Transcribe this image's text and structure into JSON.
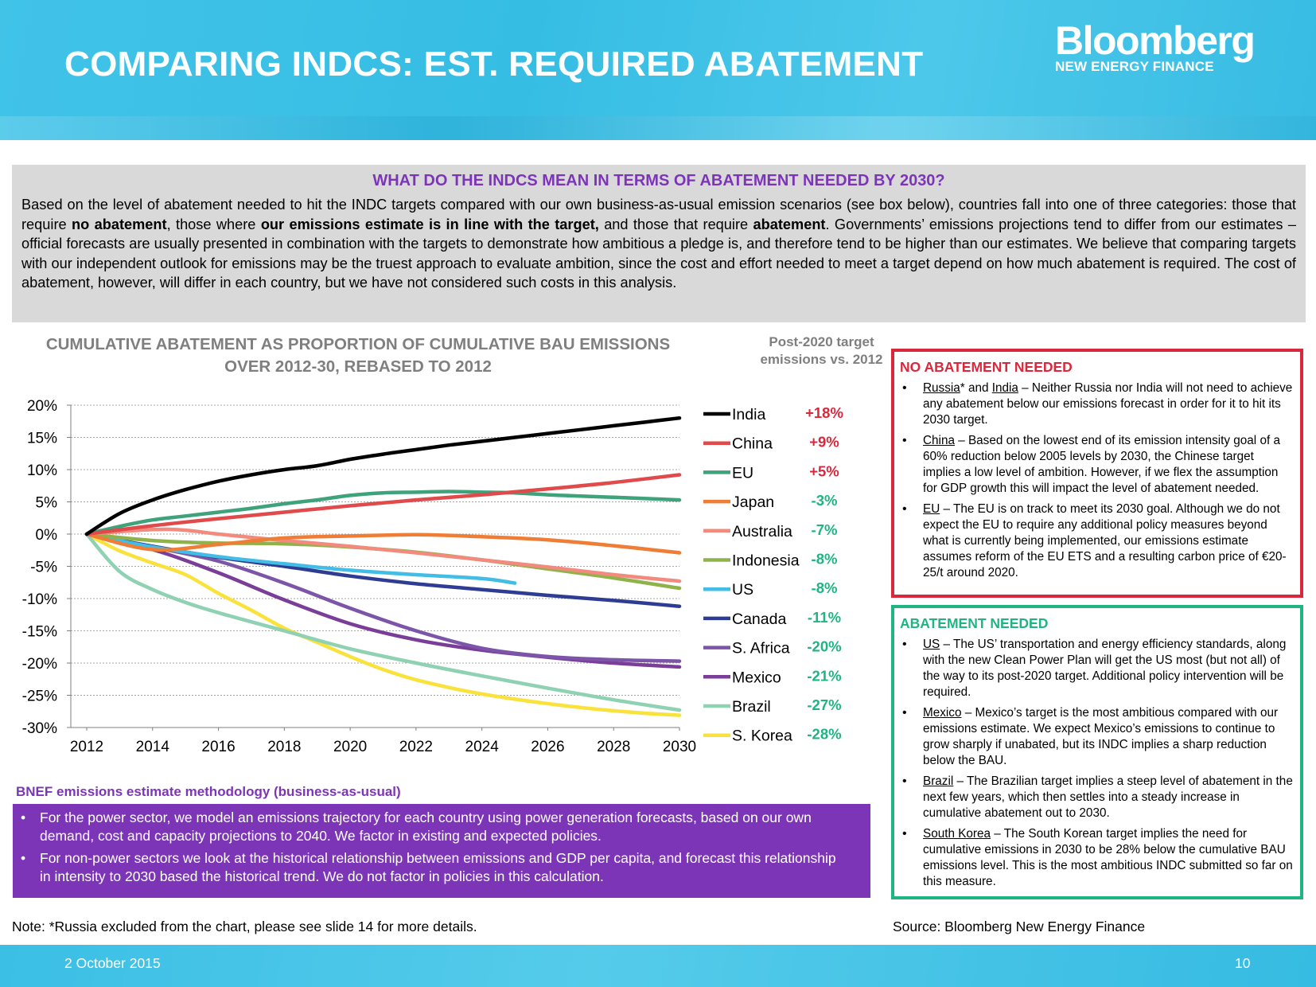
{
  "header": {
    "title": "COMPARING INDCS: EST. REQUIRED ABATEMENT",
    "logo_main": "Bloomberg",
    "logo_sub": "NEW ENERGY FINANCE"
  },
  "intro": {
    "title": "WHAT DO THE INDCS MEAN IN TERMS OF ABATEMENT NEEDED BY 2030?",
    "p1": "Based on the level of abatement needed to hit the INDC targets compared with our own business-as-usual emission scenarios (see box below), countries fall into one of three categories: those that require ",
    "b1": "no abatement",
    "p2": ", those where ",
    "b2": "our emissions estimate is in line with the target,",
    "p3": " and those that require ",
    "b3": "abatement",
    "p4": ". Governments’ emissions projections tend to differ from our estimates – official forecasts are usually presented in combination with the targets to demonstrate how ambitious a pledge is, and therefore tend to be higher than our estimates. We believe that comparing targets with our independent outlook for emissions may be the truest approach to evaluate ambition, since the cost and effort needed to meet a target depend on how much abatement is required. The cost of abatement, however, will differ in each country, but we have not considered such costs in this analysis."
  },
  "chart_data": {
    "type": "line",
    "title": "CUMULATIVE ABATEMENT AS PROPORTION OF CUMULATIVE BAU EMISSIONS OVER 2012-30, REBASED TO 2012",
    "target_column_title": "Post-2020 target emissions vs. 2012",
    "xlabel": "",
    "ylabel": "",
    "xlim": [
      2012,
      2030
    ],
    "ylim": [
      -30,
      20
    ],
    "x_ticks": [
      "2012",
      "2014",
      "2016",
      "2018",
      "2020",
      "2022",
      "2024",
      "2026",
      "2028",
      "2030"
    ],
    "y_ticks": [
      "20%",
      "15%",
      "10%",
      "5%",
      "0%",
      "-5%",
      "-10%",
      "-15%",
      "-20%",
      "-25%",
      "-30%"
    ],
    "y_tick_values": [
      20,
      15,
      10,
      5,
      0,
      -5,
      -10,
      -15,
      -20,
      -25,
      -30
    ],
    "grid": true,
    "legend_position": "right",
    "series": [
      {
        "name": "India",
        "color": "#000000",
        "target": "+18%",
        "target_color": "#d9283c",
        "points": [
          [
            2012,
            0
          ],
          [
            2013,
            3.2
          ],
          [
            2014,
            5.3
          ],
          [
            2015,
            6.9
          ],
          [
            2016,
            8.2
          ],
          [
            2017,
            9.2
          ],
          [
            2018,
            10.0
          ],
          [
            2019,
            10.6
          ],
          [
            2020,
            11.6
          ],
          [
            2021,
            12.4
          ],
          [
            2022,
            13.1
          ],
          [
            2023,
            13.8
          ],
          [
            2024,
            14.4
          ],
          [
            2025,
            15.0
          ],
          [
            2026,
            15.6
          ],
          [
            2027,
            16.2
          ],
          [
            2028,
            16.8
          ],
          [
            2029,
            17.4
          ],
          [
            2030,
            18.0
          ]
        ]
      },
      {
        "name": "China",
        "color": "#e04a4a",
        "target": "+9%",
        "target_color": "#d9283c",
        "points": [
          [
            2012,
            0
          ],
          [
            2014,
            1.3
          ],
          [
            2016,
            2.4
          ],
          [
            2018,
            3.4
          ],
          [
            2020,
            4.4
          ],
          [
            2022,
            5.3
          ],
          [
            2024,
            6.1
          ],
          [
            2026,
            7.0
          ],
          [
            2028,
            8.0
          ],
          [
            2030,
            9.2
          ]
        ]
      },
      {
        "name": "EU",
        "color": "#3ea27a",
        "target": "+5%",
        "target_color": "#d9283c",
        "points": [
          [
            2012,
            0
          ],
          [
            2013,
            1.2
          ],
          [
            2014,
            2.2
          ],
          [
            2015,
            2.8
          ],
          [
            2016,
            3.4
          ],
          [
            2017,
            4.0
          ],
          [
            2018,
            4.7
          ],
          [
            2019,
            5.3
          ],
          [
            2020,
            6.0
          ],
          [
            2021,
            6.4
          ],
          [
            2022,
            6.5
          ],
          [
            2023,
            6.6
          ],
          [
            2024,
            6.5
          ],
          [
            2025,
            6.4
          ],
          [
            2026,
            6.1
          ],
          [
            2027,
            5.9
          ],
          [
            2028,
            5.7
          ],
          [
            2029,
            5.5
          ],
          [
            2030,
            5.3
          ]
        ]
      },
      {
        "name": "Japan",
        "color": "#ef7d35",
        "target": "-3%",
        "target_color": "#1fb582",
        "points": [
          [
            2012,
            0
          ],
          [
            2014,
            -2.4
          ],
          [
            2016,
            -1.6
          ],
          [
            2018,
            -0.6
          ],
          [
            2020,
            -0.3
          ],
          [
            2022,
            -0.1
          ],
          [
            2024,
            -0.4
          ],
          [
            2026,
            -0.9
          ],
          [
            2028,
            -1.8
          ],
          [
            2030,
            -2.9
          ]
        ]
      },
      {
        "name": "Australia",
        "color": "#f28a7e",
        "target": "-7%",
        "target_color": "#1fb582",
        "points": [
          [
            2012,
            0
          ],
          [
            2014,
            0.7
          ],
          [
            2015,
            0.6
          ],
          [
            2016,
            0.0
          ],
          [
            2018,
            -1.0
          ],
          [
            2020,
            -1.9
          ],
          [
            2022,
            -2.9
          ],
          [
            2024,
            -4.0
          ],
          [
            2026,
            -5.1
          ],
          [
            2028,
            -6.3
          ],
          [
            2030,
            -7.3
          ]
        ]
      },
      {
        "name": "Indonesia",
        "color": "#8fb34a",
        "target": "-8%",
        "target_color": "#1fb582",
        "points": [
          [
            2012,
            0
          ],
          [
            2014,
            -1.0
          ],
          [
            2016,
            -1.4
          ],
          [
            2018,
            -1.5
          ],
          [
            2020,
            -2.0
          ],
          [
            2022,
            -2.8
          ],
          [
            2024,
            -4.0
          ],
          [
            2026,
            -5.4
          ],
          [
            2028,
            -6.8
          ],
          [
            2030,
            -8.4
          ]
        ]
      },
      {
        "name": "US",
        "color": "#43bde6",
        "target": "-8%",
        "target_color": "#1fb582",
        "points": [
          [
            2012,
            0
          ],
          [
            2014,
            -2.0
          ],
          [
            2016,
            -3.5
          ],
          [
            2018,
            -4.6
          ],
          [
            2020,
            -5.6
          ],
          [
            2022,
            -6.3
          ],
          [
            2024,
            -6.9
          ],
          [
            2025,
            -7.6
          ]
        ]
      },
      {
        "name": "Canada",
        "color": "#2e3d93",
        "target": "-11%",
        "target_color": "#1fb582",
        "points": [
          [
            2012,
            0
          ],
          [
            2014,
            -1.9
          ],
          [
            2016,
            -3.6
          ],
          [
            2018,
            -5.0
          ],
          [
            2020,
            -6.5
          ],
          [
            2022,
            -7.7
          ],
          [
            2024,
            -8.6
          ],
          [
            2026,
            -9.5
          ],
          [
            2028,
            -10.3
          ],
          [
            2030,
            -11.2
          ]
        ]
      },
      {
        "name": "S. Africa",
        "color": "#7d55a8",
        "target": "-20%",
        "target_color": "#1fb582",
        "points": [
          [
            2012,
            0
          ],
          [
            2014,
            -2.0
          ],
          [
            2016,
            -4.2
          ],
          [
            2018,
            -7.6
          ],
          [
            2020,
            -11.5
          ],
          [
            2022,
            -15.0
          ],
          [
            2024,
            -17.7
          ],
          [
            2026,
            -19.0
          ],
          [
            2028,
            -19.5
          ],
          [
            2030,
            -19.7
          ]
        ]
      },
      {
        "name": "Mexico",
        "color": "#7a3e99",
        "target": "-21%",
        "target_color": "#1fb582",
        "points": [
          [
            2012,
            0
          ],
          [
            2014,
            -2.4
          ],
          [
            2016,
            -6.0
          ],
          [
            2018,
            -10.2
          ],
          [
            2020,
            -13.9
          ],
          [
            2022,
            -16.4
          ],
          [
            2024,
            -18.0
          ],
          [
            2026,
            -19.1
          ],
          [
            2028,
            -20.0
          ],
          [
            2030,
            -20.6
          ]
        ]
      },
      {
        "name": "Brazil",
        "color": "#8fd1b3",
        "target": "-27%",
        "target_color": "#1fb582",
        "points": [
          [
            2012,
            0
          ],
          [
            2013,
            -5.8
          ],
          [
            2014,
            -8.6
          ],
          [
            2015,
            -10.6
          ],
          [
            2016,
            -12.2
          ],
          [
            2018,
            -15.0
          ],
          [
            2020,
            -17.8
          ],
          [
            2022,
            -20.0
          ],
          [
            2024,
            -22.0
          ],
          [
            2026,
            -23.9
          ],
          [
            2028,
            -25.7
          ],
          [
            2030,
            -27.3
          ]
        ]
      },
      {
        "name": "S. Korea",
        "color": "#f9e23c",
        "target": "-28%",
        "target_color": "#1fb582",
        "points": [
          [
            2012,
            0
          ],
          [
            2013,
            -2.6
          ],
          [
            2014,
            -4.5
          ],
          [
            2015,
            -6.3
          ],
          [
            2016,
            -9.2
          ],
          [
            2017,
            -11.8
          ],
          [
            2018,
            -14.6
          ],
          [
            2019,
            -16.8
          ],
          [
            2020,
            -19.0
          ],
          [
            2021,
            -21.0
          ],
          [
            2022,
            -22.6
          ],
          [
            2023,
            -23.8
          ],
          [
            2024,
            -24.8
          ],
          [
            2025,
            -25.6
          ],
          [
            2026,
            -26.3
          ],
          [
            2027,
            -26.9
          ],
          [
            2028,
            -27.4
          ],
          [
            2029,
            -27.8
          ],
          [
            2030,
            -28.1
          ]
        ]
      }
    ]
  },
  "methodology": {
    "title": "BNEF emissions estimate methodology (business-as-usual)",
    "bullets": [
      "For the power sector, we model an emissions trajectory for each country using power generation forecasts, based on our own demand, cost and capacity projections to 2040. We factor in existing and expected policies.",
      "For non-power sectors we look at the historical relationship between emissions and GDP per capita, and forecast this relationship in intensity to 2030 based the historical trend. We do not factor in policies in this calculation."
    ]
  },
  "no_abatement": {
    "title": "NO ABATEMENT NEEDED",
    "items": [
      {
        "c1": "Russia",
        "mid": "* and ",
        "c2": "India",
        "text": " – Neither Russia nor India will not need to achieve any abatement below our emissions forecast in order for it to hit its 2030 target."
      },
      {
        "c1": "China",
        "text": " – Based on the lowest end of its emission intensity goal of a 60% reduction below 2005 levels by 2030, the Chinese target implies a low level of ambition. However, if we flex the assumption for GDP growth this will impact the level of abatement needed."
      },
      {
        "c1": "EU",
        "text": " – The EU is on track to meet its 2030 goal. Although we do not expect the EU to require any additional policy measures beyond what is currently being implemented, our emissions estimate assumes reform of the EU ETS and a resulting carbon price of €20-25/t around 2020."
      }
    ]
  },
  "abatement": {
    "title": "ABATEMENT NEEDED",
    "items": [
      {
        "c1": "US",
        "text": " – The US’ transportation and energy efficiency standards, along with the new Clean Power Plan will get the US most (but not all) of the way to its post-2020 target. Additional policy intervention will be required."
      },
      {
        "c1": "Mexico",
        "text": " – Mexico’s target is the most ambitious compared with our emissions estimate. We expect Mexico’s emissions to continue to grow sharply if unabated, but its INDC implies a sharp reduction below the BAU."
      },
      {
        "c1": "Brazil",
        "text": " – The Brazilian target implies a steep level of abatement in the next few years, which then settles into a steady increase in cumulative abatement out to 2030."
      },
      {
        "c1": "South Korea",
        "text": " – The South Korean target implies the need for cumulative emissions in 2030 to be 28% below the cumulative BAU emissions level. This is the most ambitious INDC submitted so far on this measure."
      }
    ]
  },
  "footer": {
    "note": "Note: *Russia excluded from the chart, please see slide 14 for more details.",
    "source": "Source: Bloomberg New Energy Finance",
    "date": "2 October 2015",
    "page": "10"
  }
}
